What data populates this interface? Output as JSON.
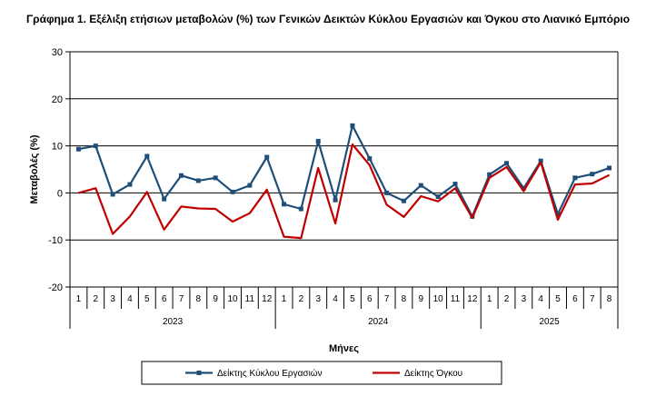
{
  "chart_data": {
    "type": "line",
    "title": "Γράφημα 1. Εξέλιξη ετήσιων μεταβολών (%) των Γενικών Δεικτών Κύκλου Εργασιών και Όγκου στο Λιανικό Εμπόριο",
    "xlabel": "Μήνες",
    "ylabel": "Μεταβολές (%)",
    "ylim": [
      -20,
      30
    ],
    "yticks": [
      -20,
      -10,
      0,
      10,
      20,
      30
    ],
    "grid": true,
    "legend_position": "bottom",
    "years": [
      {
        "label": "2023",
        "months": [
          "1",
          "2",
          "3",
          "4",
          "5",
          "6",
          "7",
          "8",
          "9",
          "10",
          "11",
          "12"
        ]
      },
      {
        "label": "2024",
        "months": [
          "1",
          "2",
          "3",
          "4",
          "5",
          "6",
          "7",
          "8",
          "9",
          "10",
          "11",
          "12"
        ]
      },
      {
        "label": "2025",
        "months": [
          "1",
          "2",
          "3",
          "4",
          "5",
          "6",
          "7",
          "8"
        ]
      }
    ],
    "series": [
      {
        "name": "Δείκτης Κύκλου Εργασιών",
        "color": "#1F4E79",
        "marker": "square",
        "values": [
          9.3,
          10.0,
          -0.3,
          1.8,
          7.8,
          -1.3,
          3.7,
          2.6,
          3.2,
          0.2,
          1.6,
          7.6,
          -2.4,
          -3.4,
          11.0,
          -1.5,
          14.3,
          7.3,
          0.0,
          -1.7,
          1.6,
          -0.8,
          1.9,
          -5.0,
          3.9,
          6.3,
          1.0,
          6.8,
          -4.5,
          3.2,
          4.0,
          5.3
        ]
      },
      {
        "name": "Δείκτης Όγκου",
        "color": "#C00000",
        "marker": "none",
        "values": [
          0.0,
          1.0,
          -8.7,
          -5.0,
          0.2,
          -7.8,
          -2.9,
          -3.3,
          -3.4,
          -6.1,
          -4.3,
          0.7,
          -9.3,
          -9.6,
          5.3,
          -6.5,
          10.3,
          5.9,
          -2.5,
          -5.1,
          -0.7,
          -1.8,
          1.0,
          -5.3,
          3.2,
          5.5,
          0.4,
          6.5,
          -5.7,
          1.8,
          2.0,
          3.8
        ]
      }
    ]
  }
}
